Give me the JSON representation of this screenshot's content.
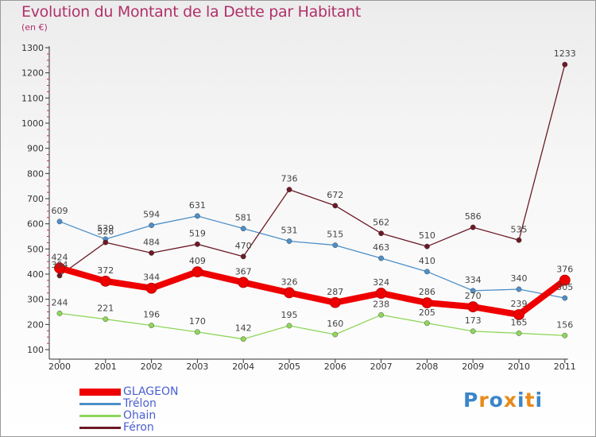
{
  "header": {
    "title": "Evolution du Montant de la Dette par Habitant",
    "subtitle": "(en €)"
  },
  "logo": {
    "text": "Proxiti",
    "letters": [
      "P",
      "r",
      "o",
      "x",
      "i",
      "t",
      "i"
    ],
    "colors": [
      "#3a86c8",
      "#e88a1a",
      "#3a86c8",
      "#e88a1a",
      "#3a86c8",
      "#e88a1a",
      "#3a86c8"
    ]
  },
  "chart_data": {
    "type": "line",
    "title": "Evolution du Montant de la Dette par Habitant",
    "subtitle": "(en €)",
    "categories": [
      "2000",
      "2001",
      "2002",
      "2003",
      "2004",
      "2005",
      "2006",
      "2007",
      "2008",
      "2009",
      "2010",
      "2011"
    ],
    "ylim": [
      100,
      1300
    ],
    "yticks": [
      100,
      200,
      300,
      400,
      500,
      600,
      700,
      800,
      900,
      1000,
      1100,
      1200,
      1300
    ],
    "grid": false,
    "legend_placement": "bottom-left",
    "series": [
      {
        "name": "GLAGEON",
        "color": "#ee0000",
        "values": [
          424,
          372,
          344,
          409,
          367,
          326,
          287,
          324,
          286,
          270,
          239,
          376
        ]
      },
      {
        "name": "Trélon",
        "color": "#4d8fc8",
        "values": [
          609,
          539,
          594,
          631,
          581,
          531,
          515,
          463,
          410,
          334,
          340,
          305
        ]
      },
      {
        "name": "Ohain",
        "color": "#8fd65a",
        "values": [
          244,
          221,
          196,
          170,
          142,
          195,
          160,
          238,
          205,
          173,
          165,
          156
        ]
      },
      {
        "name": "Féron",
        "color": "#6b1a26",
        "values": [
          394,
          526,
          484,
          519,
          470,
          736,
          672,
          562,
          510,
          586,
          535,
          1233
        ]
      }
    ]
  }
}
